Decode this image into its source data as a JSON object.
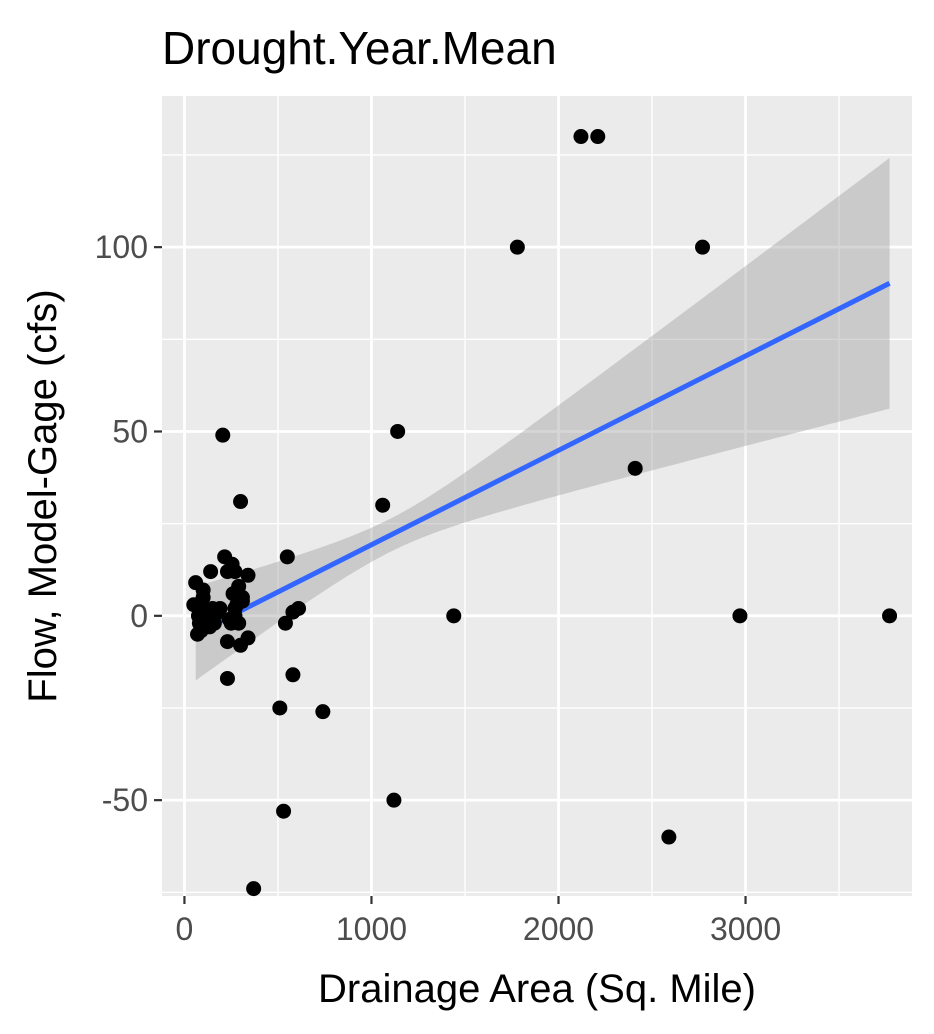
{
  "chart_data": {
    "type": "scatter",
    "title": "Drought.Year.Mean",
    "xlabel": "Drainage Area (Sq. Mile)",
    "ylabel": "Flow, Model-Gage (cfs)",
    "xlim": [
      -120,
      3890
    ],
    "ylim": [
      -76,
      141
    ],
    "x_ticks": [
      0,
      1000,
      2000,
      3000
    ],
    "x_tick_labels": [
      "0",
      "1000",
      "2000",
      "3000"
    ],
    "x_minor_ticks": [
      500,
      1500,
      2500,
      3500
    ],
    "y_ticks": [
      -50,
      0,
      50,
      100
    ],
    "y_tick_labels": [
      "-50",
      "0",
      "50",
      "100"
    ],
    "y_minor_ticks": [
      -75,
      -25,
      25,
      75,
      125
    ],
    "grid": true,
    "legend": "none",
    "colors": {
      "panel_background": "#ebebeb",
      "grid": "#ffffff",
      "points": "#000000",
      "fit_line": "#3366ff",
      "confidence_band": "#999999"
    },
    "points": {
      "x": [
        2120,
        2210,
        1780,
        2770,
        1140,
        1060,
        2410,
        3770,
        2970,
        1440,
        2590,
        1120,
        740,
        580,
        510,
        530,
        370,
        205,
        300,
        215,
        255,
        270,
        230,
        230,
        340,
        290,
        310,
        310,
        340,
        270,
        270,
        290,
        300,
        230,
        190,
        240,
        250,
        260,
        280,
        550,
        540,
        610,
        580,
        140,
        60,
        75,
        80,
        85,
        90,
        95,
        100,
        110,
        120,
        130,
        150,
        160,
        180,
        50,
        70,
        100,
        115,
        135,
        165
      ],
      "y": [
        130,
        130,
        100,
        100,
        50,
        30,
        40,
        0,
        0,
        0,
        -60,
        -50,
        -26,
        -16,
        -25,
        -53,
        -74,
        49,
        31,
        16,
        14,
        12,
        12,
        -17,
        11,
        8,
        5,
        4,
        -6,
        2,
        0,
        -2,
        -8,
        -7,
        2,
        -1,
        -2,
        6,
        3,
        16,
        -2,
        2,
        1,
        12,
        9,
        0,
        -2,
        3,
        -4,
        1,
        5,
        -3,
        0,
        -1,
        2,
        -2,
        1,
        3,
        -5,
        7,
        0,
        -3,
        1
      ]
    },
    "fit": {
      "x": [
        60,
        3770
      ],
      "y": [
        -4.8,
        90.2
      ],
      "band_lower": [
        -17.5,
        56.5
      ],
      "band_upper": [
        8.0,
        124.5
      ],
      "band_center_x": 1100,
      "band_center_halfwidth": 4.5
    }
  }
}
